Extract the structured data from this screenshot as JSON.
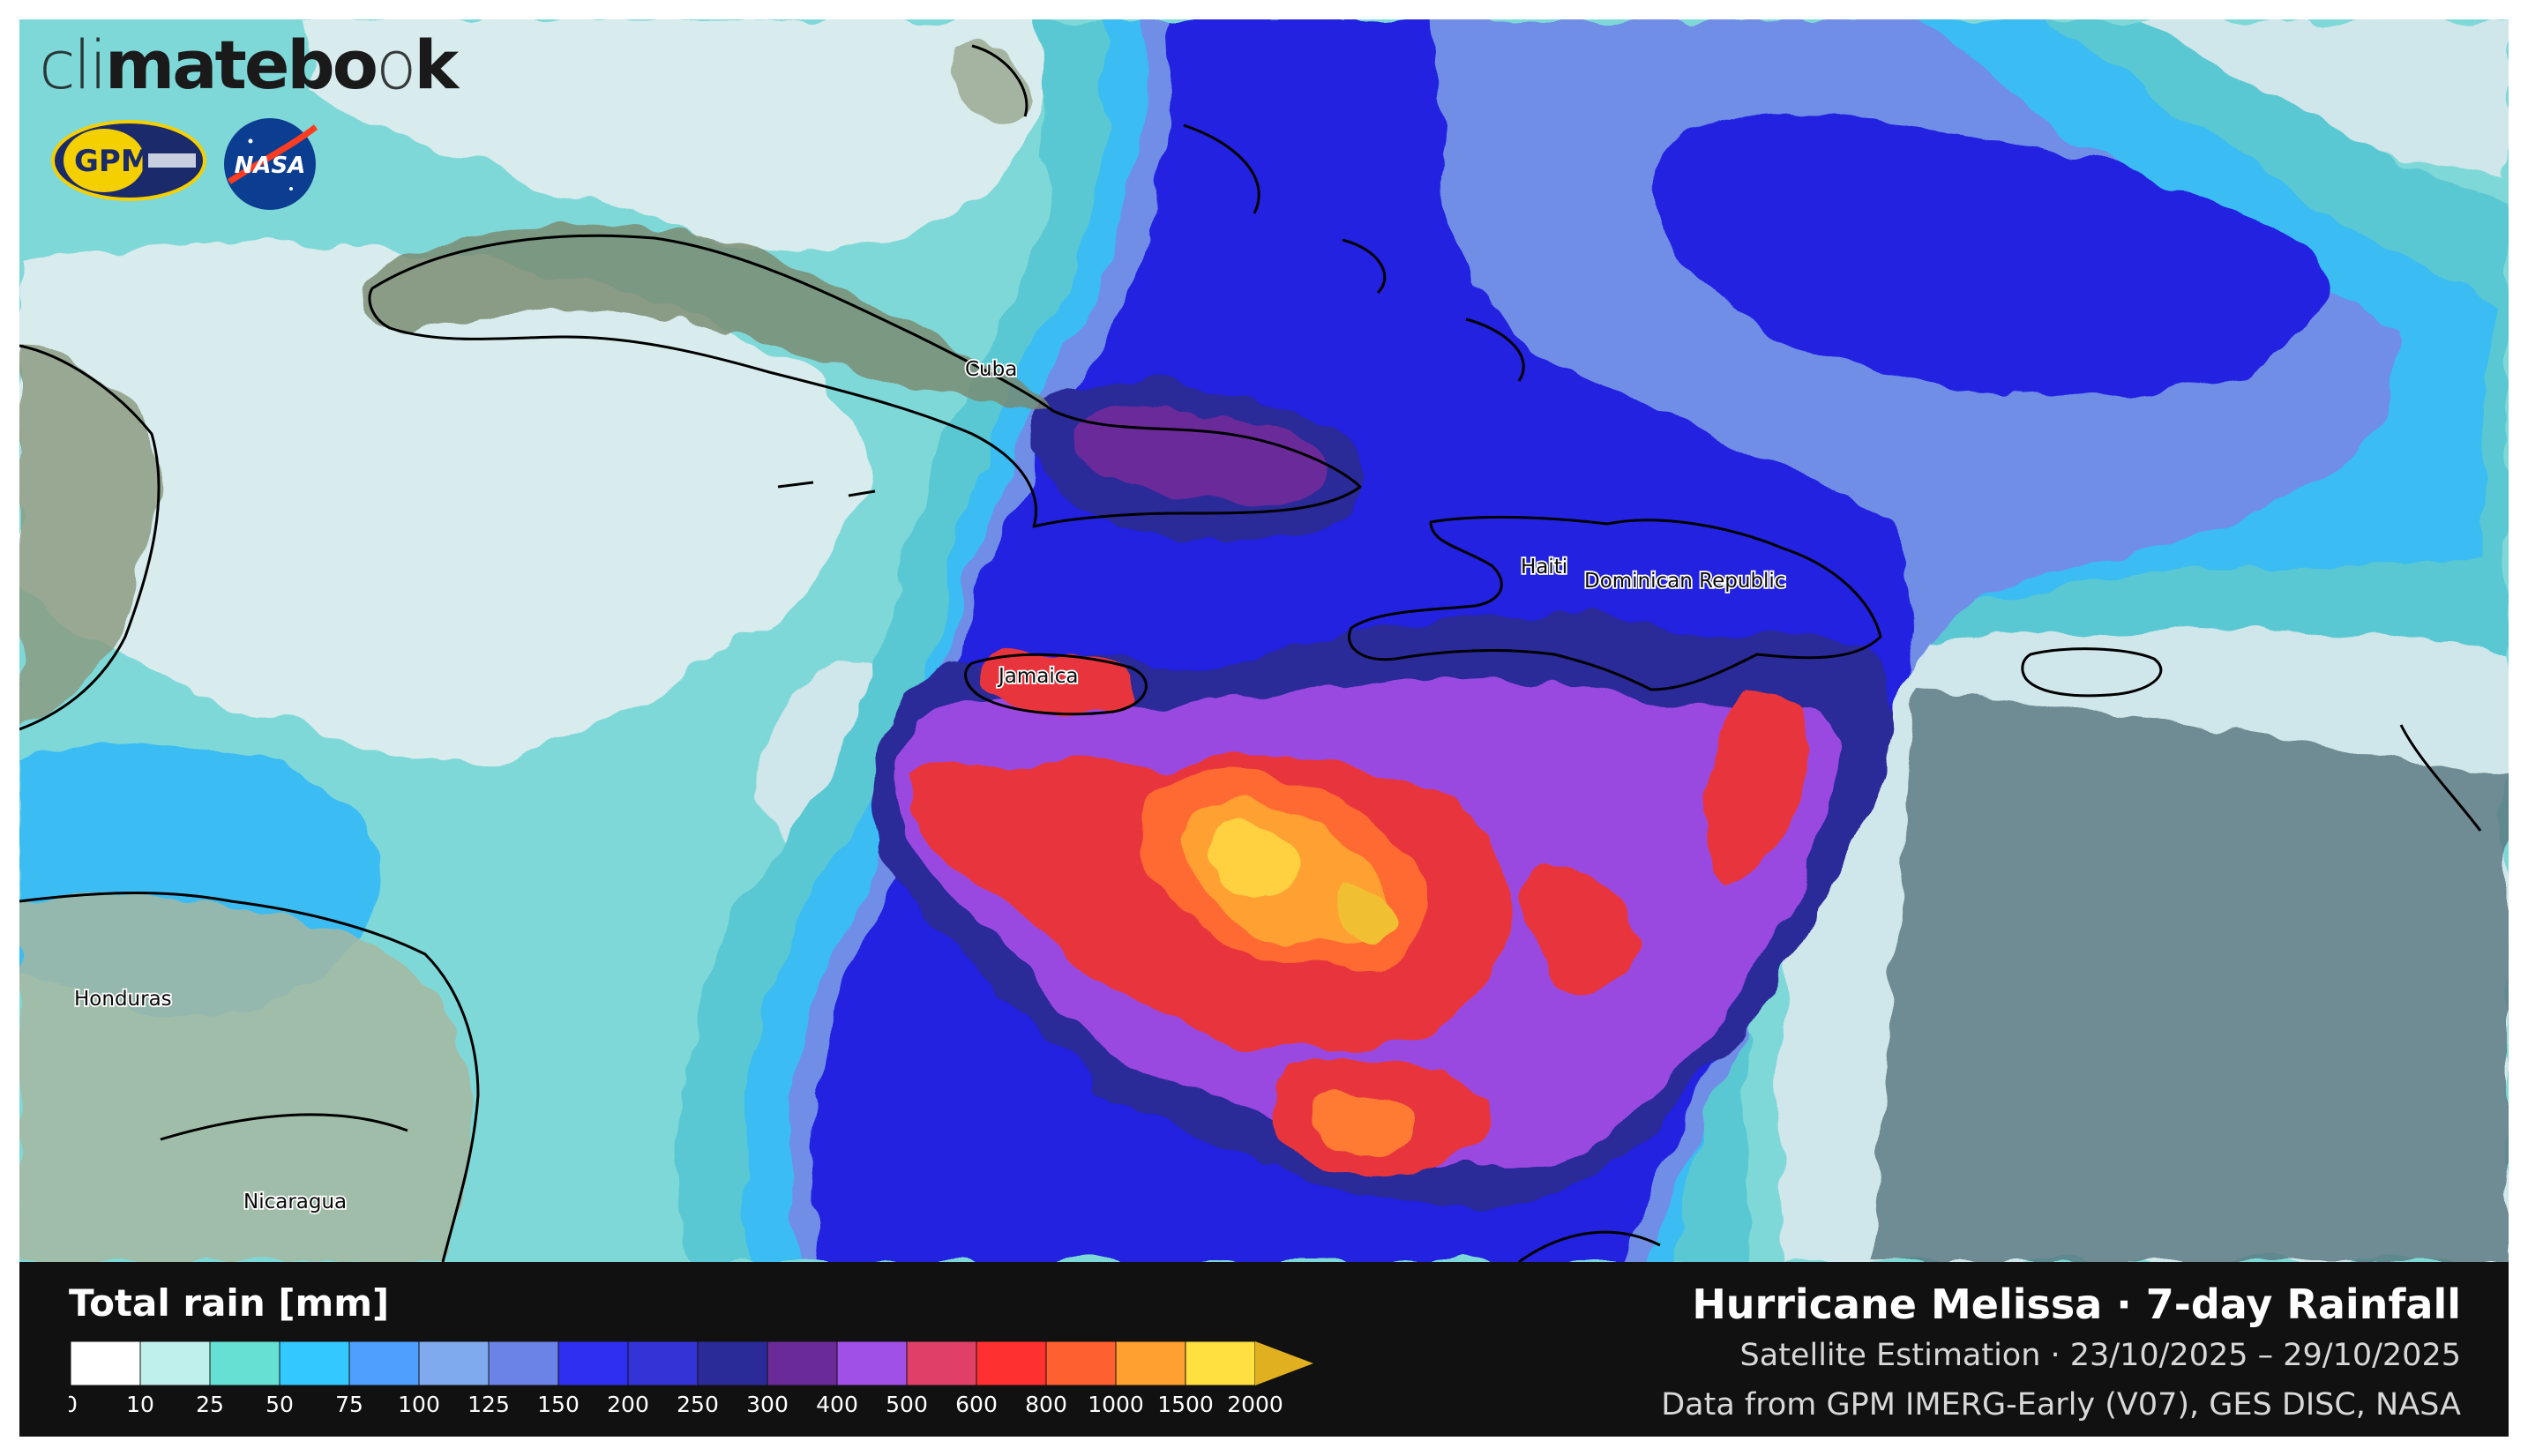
{
  "brand": {
    "prefix": "cli",
    "core": "matebo",
    "o": "o",
    "suffix": "k"
  },
  "logos": {
    "gpm": "GPM",
    "nasa": "NASA"
  },
  "map": {
    "labels": {
      "cuba": "Cuba",
      "haiti": "Haiti",
      "dominican_republic": "Dominican Republic",
      "jamaica": "Jamaica",
      "honduras": "Honduras",
      "nicaragua": "Nicaragua"
    }
  },
  "legend": {
    "title": "Total rain [mm]",
    "ticks": [
      "0",
      "10",
      "25",
      "50",
      "75",
      "100",
      "125",
      "150",
      "200",
      "250",
      "300",
      "400",
      "500",
      "600",
      "800",
      "1000",
      "1500",
      "2000"
    ],
    "colors": [
      "#ffffff",
      "#bff0ec",
      "#66e0d2",
      "#33c8ff",
      "#4f9fff",
      "#7faaee",
      "#6b82e6",
      "#2f2ff2",
      "#3333d6",
      "#2a2a99",
      "#6a2a9a",
      "#a050e6",
      "#e04068",
      "#ff3030",
      "#ff6030",
      "#ffa030",
      "#ffe040"
    ],
    "extend_color": "#e0b020"
  },
  "title": {
    "main": "Hurricane Melissa · 7-day Rainfall",
    "subtitle": "Satellite Estimation · 23/10/2025 – 29/10/2025",
    "credit": "Data from GPM IMERG-Early (V07), GES DISC, NASA"
  }
}
